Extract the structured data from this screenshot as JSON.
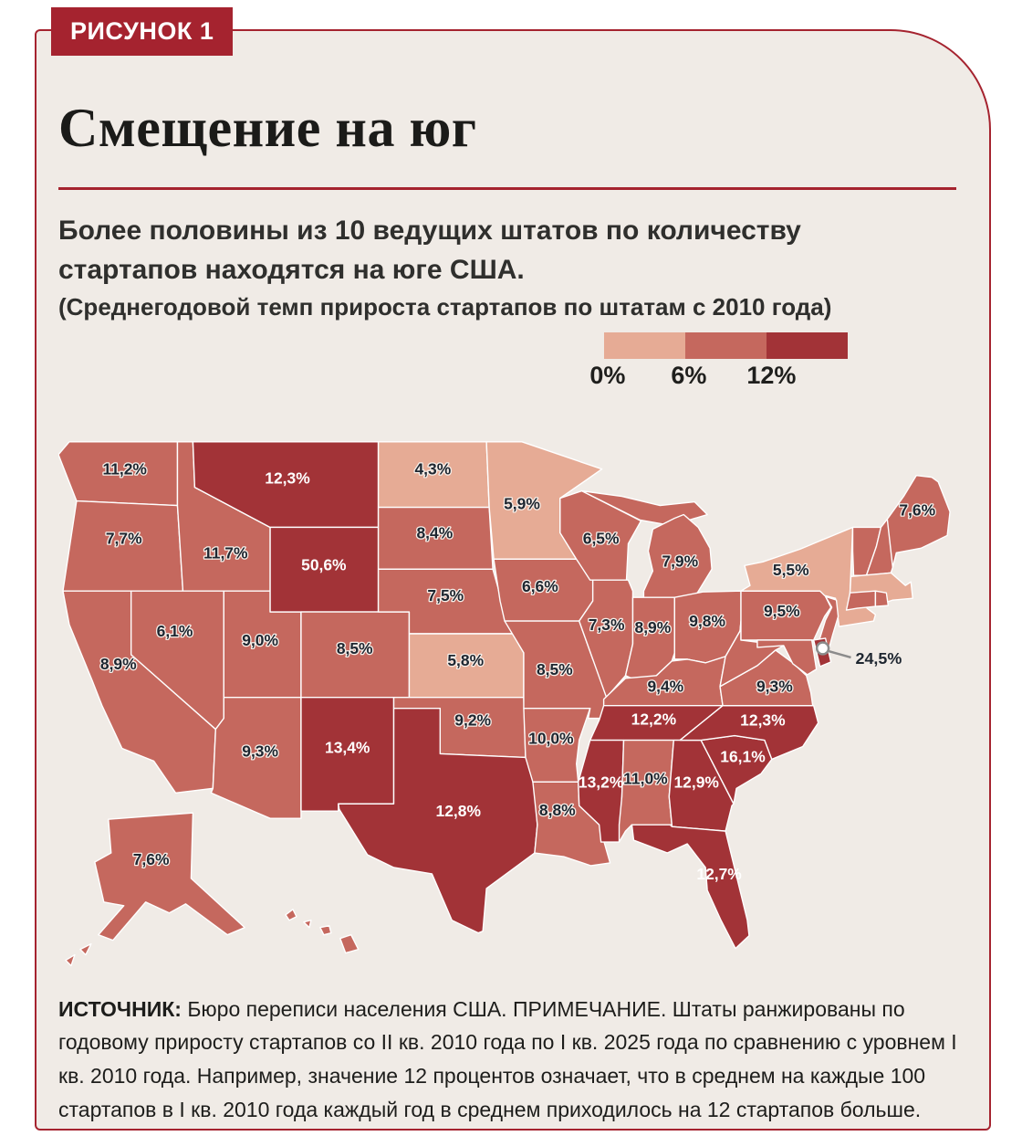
{
  "figure_label": "РИСУНОК 1",
  "title": "Смещение на юг",
  "subtitle": "Более половины из 10 ведущих штатов по количеству стартапов находятся на юге США.",
  "subtitle_note": "(Среднегодовой темп прироста стартапов по штатам с 2010 года)",
  "legend": {
    "ticks": [
      "0%",
      "6%",
      "12%"
    ],
    "colors": {
      "low": "#e6ab95",
      "mid": "#c5685e",
      "high": "#a23337"
    }
  },
  "map": {
    "background": "#f0ebe6",
    "stroke": "#ffffff",
    "label_colors": {
      "dark": "#1e2630",
      "light": "#ffffff"
    },
    "delaware_callout": {
      "state": "DE",
      "value": "24,5%"
    },
    "states": [
      {
        "id": "WA",
        "label": "11,2%",
        "bucket": "mid"
      },
      {
        "id": "OR",
        "label": "7,7%",
        "bucket": "mid"
      },
      {
        "id": "CA",
        "label": "8,9%",
        "bucket": "mid"
      },
      {
        "id": "ID",
        "label": "11,7%",
        "bucket": "mid"
      },
      {
        "id": "NV",
        "label": "6,1%",
        "bucket": "mid"
      },
      {
        "id": "UT",
        "label": "9,0%",
        "bucket": "mid"
      },
      {
        "id": "AZ",
        "label": "9,3%",
        "bucket": "mid"
      },
      {
        "id": "MT",
        "label": "12,3%",
        "bucket": "high"
      },
      {
        "id": "WY",
        "label": "50,6%",
        "bucket": "high"
      },
      {
        "id": "CO",
        "label": "8,5%",
        "bucket": "mid"
      },
      {
        "id": "NM",
        "label": "13,4%",
        "bucket": "high"
      },
      {
        "id": "ND",
        "label": "4,3%",
        "bucket": "low"
      },
      {
        "id": "SD",
        "label": "8,4%",
        "bucket": "mid"
      },
      {
        "id": "NE",
        "label": "7,5%",
        "bucket": "mid"
      },
      {
        "id": "KS",
        "label": "5,8%",
        "bucket": "low"
      },
      {
        "id": "OK",
        "label": "9,2%",
        "bucket": "mid"
      },
      {
        "id": "TX",
        "label": "12,8%",
        "bucket": "high"
      },
      {
        "id": "MN",
        "label": "5,9%",
        "bucket": "low"
      },
      {
        "id": "IA",
        "label": "6,6%",
        "bucket": "mid"
      },
      {
        "id": "MO",
        "label": "8,5%",
        "bucket": "mid"
      },
      {
        "id": "AR",
        "label": "10,0%",
        "bucket": "mid"
      },
      {
        "id": "LA",
        "label": "8,8%",
        "bucket": "mid"
      },
      {
        "id": "WI",
        "label": "6,5%",
        "bucket": "mid"
      },
      {
        "id": "IL",
        "label": "7,3%",
        "bucket": "mid"
      },
      {
        "id": "MI",
        "label": "7,9%",
        "bucket": "mid"
      },
      {
        "id": "IN",
        "label": "8,9%",
        "bucket": "mid"
      },
      {
        "id": "OH",
        "label": "9,8%",
        "bucket": "mid"
      },
      {
        "id": "KY",
        "label": "9,4%",
        "bucket": "mid"
      },
      {
        "id": "TN",
        "label": "12,2%",
        "bucket": "high"
      },
      {
        "id": "MS",
        "label": "13,2%",
        "bucket": "high"
      },
      {
        "id": "AL",
        "label": "11,0%",
        "bucket": "mid"
      },
      {
        "id": "GA",
        "label": "12,9%",
        "bucket": "high"
      },
      {
        "id": "FL",
        "label": "12,7%",
        "bucket": "high"
      },
      {
        "id": "SC",
        "label": "16,1%",
        "bucket": "high"
      },
      {
        "id": "NC",
        "label": "12,3%",
        "bucket": "high"
      },
      {
        "id": "VA",
        "label": "9,3%",
        "bucket": "mid"
      },
      {
        "id": "WV",
        "label": null,
        "bucket": "mid"
      },
      {
        "id": "PA",
        "label": "9,5%",
        "bucket": "mid"
      },
      {
        "id": "NY",
        "label": "5,5%",
        "bucket": "low"
      },
      {
        "id": "NJ",
        "label": null,
        "bucket": "mid"
      },
      {
        "id": "MD",
        "label": null,
        "bucket": "mid"
      },
      {
        "id": "DE",
        "label": null,
        "bucket": "high"
      },
      {
        "id": "VT",
        "label": null,
        "bucket": "mid"
      },
      {
        "id": "NH",
        "label": null,
        "bucket": "mid"
      },
      {
        "id": "MA",
        "label": null,
        "bucket": "low"
      },
      {
        "id": "CT",
        "label": null,
        "bucket": "mid"
      },
      {
        "id": "RI",
        "label": null,
        "bucket": "mid"
      },
      {
        "id": "ME",
        "label": "7,6%",
        "bucket": "mid"
      },
      {
        "id": "AK",
        "label": "7,6%",
        "bucket": "mid"
      },
      {
        "id": "HI",
        "label": null,
        "bucket": "mid"
      }
    ]
  },
  "footer": {
    "source_label": "ИСТОЧНИК:",
    "text": "Бюро переписи населения США. ПРИМЕЧАНИЕ. Штаты ранжированы по годовому приросту стартапов со II кв. 2010 года по I кв. 2025 года по сравнению с уровнем I кв. 2010 года. Например, значение 12 процентов означает, что в среднем на каждые 100 стартапов в I кв. 2010 года каждый год в среднем приходилось на 12 стартапов больше."
  },
  "chart_data": {
    "type": "choropleth",
    "region": "USA states",
    "title": "Смещение на юг",
    "metric": "Среднегодовой темп прироста стартапов по штатам с 2010 года",
    "unit": "percent",
    "legend_thresholds_percent": [
      0,
      6,
      12
    ],
    "values_percent": {
      "WA": 11.2,
      "OR": 7.7,
      "CA": 8.9,
      "ID": 11.7,
      "NV": 6.1,
      "UT": 9.0,
      "AZ": 9.3,
      "MT": 12.3,
      "WY": 50.6,
      "CO": 8.5,
      "NM": 13.4,
      "ND": 4.3,
      "SD": 8.4,
      "NE": 7.5,
      "KS": 5.8,
      "OK": 9.2,
      "TX": 12.8,
      "MN": 5.9,
      "IA": 6.6,
      "MO": 8.5,
      "AR": 10.0,
      "LA": 8.8,
      "WI": 6.5,
      "IL": 7.3,
      "MI": 7.9,
      "IN": 8.9,
      "OH": 9.8,
      "KY": 9.4,
      "TN": 12.2,
      "MS": 13.2,
      "AL": 11.0,
      "GA": 12.9,
      "FL": 12.7,
      "SC": 16.1,
      "NC": 12.3,
      "VA": 9.3,
      "PA": 9.5,
      "NY": 5.5,
      "ME": 7.6,
      "DE": 24.5,
      "AK": 7.6
    }
  }
}
